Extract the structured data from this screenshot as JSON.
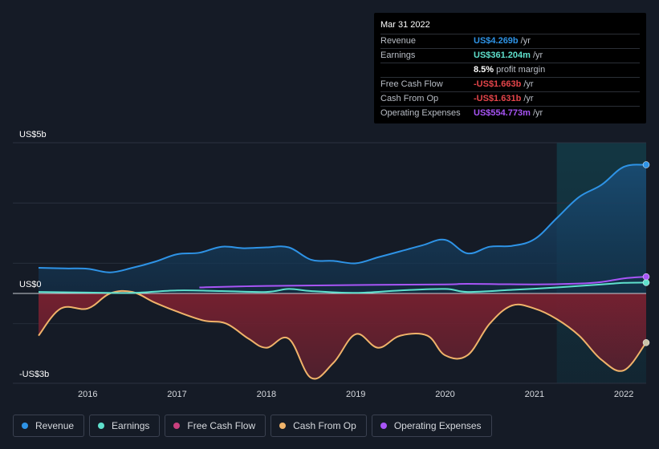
{
  "tooltip": {
    "date": "Mar 31 2022",
    "rows": [
      {
        "label": "Revenue",
        "value": "US$4.269b",
        "unit": "/yr",
        "color": "#2e93e6"
      },
      {
        "label": "Earnings",
        "value": "US$361.204m",
        "unit": "/yr",
        "color": "#5fe0cd"
      },
      {
        "label": "",
        "value": "8.5%",
        "unit": "profit margin",
        "color": "#ffffff"
      },
      {
        "label": "Free Cash Flow",
        "value": "-US$1.663b",
        "unit": "/yr",
        "color": "#e5454a"
      },
      {
        "label": "Cash From Op",
        "value": "-US$1.631b",
        "unit": "/yr",
        "color": "#e5454a"
      },
      {
        "label": "Operating Expenses",
        "value": "US$554.773m",
        "unit": "/yr",
        "color": "#a855f7"
      }
    ]
  },
  "legend": [
    {
      "name": "Revenue",
      "color": "#2e93e6"
    },
    {
      "name": "Earnings",
      "color": "#5fe0cd"
    },
    {
      "name": "Free Cash Flow",
      "color": "#c9407e"
    },
    {
      "name": "Cash From Op",
      "color": "#f0b36a"
    },
    {
      "name": "Operating Expenses",
      "color": "#a855f7"
    }
  ],
  "chart_data": {
    "type": "area",
    "title": "",
    "y_axis_labels": {
      "top": "US$5b",
      "zero": "US$0",
      "bottom": "-US$3b"
    },
    "ylim": [
      -3,
      5
    ],
    "xlim": [
      2015.45,
      2022.25
    ],
    "x_ticks": [
      "2016",
      "2017",
      "2018",
      "2019",
      "2020",
      "2021",
      "2022"
    ],
    "x_tick_values": [
      2016,
      2017,
      2018,
      2019,
      2020,
      2021,
      2022
    ],
    "forecast_start": 2021.25,
    "series": [
      {
        "name": "Revenue",
        "color": "#2e93e6",
        "x": [
          2015.45,
          2015.75,
          2016.0,
          2016.25,
          2016.5,
          2016.75,
          2017.0,
          2017.25,
          2017.5,
          2017.75,
          2018.0,
          2018.25,
          2018.5,
          2018.75,
          2019.0,
          2019.25,
          2019.5,
          2019.75,
          2020.0,
          2020.25,
          2020.5,
          2020.75,
          2021.0,
          2021.25,
          2021.5,
          2021.75,
          2022.0,
          2022.25
        ],
        "values": [
          0.85,
          0.83,
          0.82,
          0.7,
          0.85,
          1.05,
          1.3,
          1.35,
          1.55,
          1.5,
          1.53,
          1.53,
          1.12,
          1.08,
          1.0,
          1.2,
          1.4,
          1.6,
          1.78,
          1.33,
          1.55,
          1.58,
          1.8,
          2.5,
          3.2,
          3.6,
          4.2,
          4.269
        ]
      },
      {
        "name": "Earnings",
        "color": "#5fe0cd",
        "x": [
          2015.45,
          2016.0,
          2016.5,
          2017.0,
          2017.5,
          2018.0,
          2018.25,
          2018.5,
          2019.0,
          2019.5,
          2020.0,
          2020.25,
          2020.75,
          2021.25,
          2021.75,
          2022.0,
          2022.25
        ],
        "values": [
          0.05,
          0.03,
          0.02,
          0.1,
          0.08,
          0.05,
          0.15,
          0.08,
          0.02,
          0.1,
          0.15,
          0.05,
          0.12,
          0.2,
          0.3,
          0.35,
          0.361
        ]
      },
      {
        "name": "Free Cash Flow",
        "color": "#c9407e",
        "x": [
          2022.25
        ],
        "values": [
          -1.663
        ]
      },
      {
        "name": "Cash From Op",
        "color": "#f0b36a",
        "x": [
          2015.45,
          2015.7,
          2016.0,
          2016.25,
          2016.5,
          2016.75,
          2017.0,
          2017.3,
          2017.55,
          2017.8,
          2018.0,
          2018.25,
          2018.5,
          2018.75,
          2019.0,
          2019.25,
          2019.5,
          2019.8,
          2020.0,
          2020.25,
          2020.5,
          2020.75,
          2021.0,
          2021.25,
          2021.5,
          2021.75,
          2022.0,
          2022.25
        ],
        "values": [
          -1.4,
          -0.5,
          -0.5,
          0.0,
          0.05,
          -0.3,
          -0.6,
          -0.9,
          -1.0,
          -1.5,
          -1.8,
          -1.5,
          -2.8,
          -2.3,
          -1.35,
          -1.8,
          -1.4,
          -1.4,
          -2.05,
          -2.05,
          -1.0,
          -0.4,
          -0.5,
          -0.85,
          -1.4,
          -2.2,
          -2.55,
          -1.631
        ]
      },
      {
        "name": "Operating Expenses",
        "color": "#a855f7",
        "x": [
          2017.25,
          2018.0,
          2019.0,
          2020.0,
          2020.25,
          2021.0,
          2021.5,
          2021.75,
          2022.0,
          2022.25
        ],
        "values": [
          0.2,
          0.25,
          0.28,
          0.3,
          0.32,
          0.3,
          0.33,
          0.38,
          0.5,
          0.555
        ]
      }
    ]
  }
}
